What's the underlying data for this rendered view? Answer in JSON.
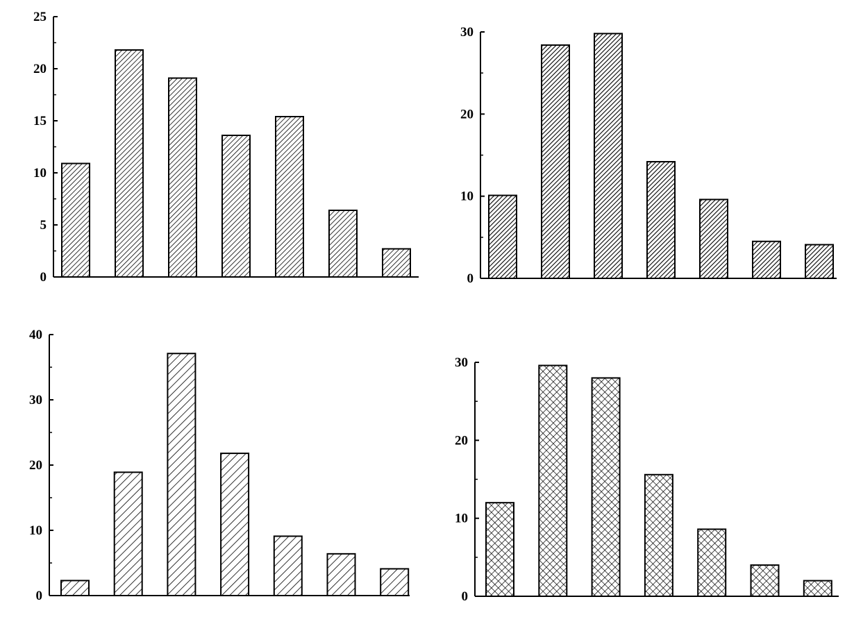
{
  "chart_data": [
    {
      "type": "bar",
      "panel": "top-left",
      "values": [
        10.9,
        21.8,
        19.1,
        13.6,
        15.4,
        6.4,
        2.7
      ],
      "ylim": [
        0,
        25
      ],
      "yticks": [
        0,
        5,
        10,
        15,
        20,
        25
      ],
      "pattern": "dense-diagonal-hatch",
      "grid": false
    },
    {
      "type": "bar",
      "panel": "top-right",
      "values": [
        10.1,
        28.4,
        29.8,
        14.2,
        9.6,
        4.5,
        4.1
      ],
      "ylim": [
        0,
        30
      ],
      "yticks": [
        0,
        10,
        20,
        30
      ],
      "pattern": "dark-diagonal-hatch",
      "grid": false
    },
    {
      "type": "bar",
      "panel": "bottom-left",
      "values": [
        2.3,
        18.9,
        37.1,
        21.8,
        9.1,
        6.4,
        4.1
      ],
      "ylim": [
        0,
        40
      ],
      "yticks": [
        0,
        10,
        20,
        30,
        40
      ],
      "pattern": "wide-diagonal-hatch",
      "grid": false
    },
    {
      "type": "bar",
      "panel": "bottom-right",
      "values": [
        12.0,
        29.6,
        28.0,
        15.6,
        8.6,
        4.0,
        2.0
      ],
      "ylim": [
        0,
        30
      ],
      "yticks": [
        0,
        10,
        20,
        30
      ],
      "pattern": "cross-hatch",
      "grid": false
    }
  ]
}
